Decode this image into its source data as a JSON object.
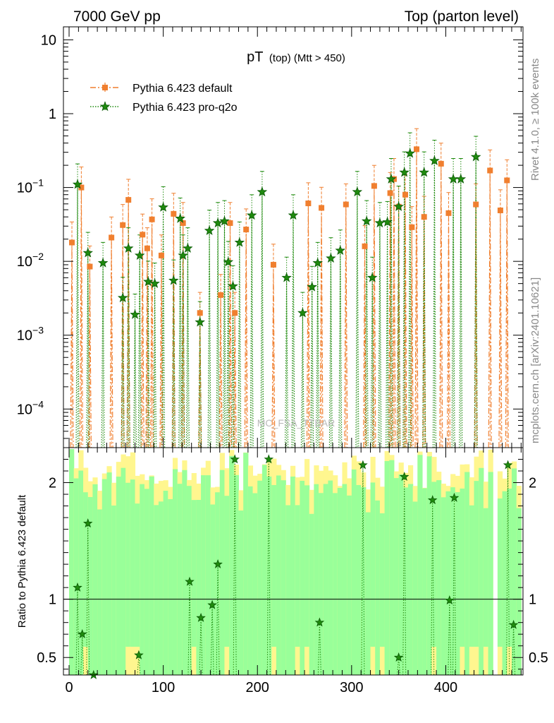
{
  "header": {
    "left": "7000 GeV pp",
    "right": "Top (parton level)"
  },
  "side_labels": {
    "rivet": "Rivet 4.1.0, ≥ 100k events",
    "mcplots": "mcplots.cern.ch [arXiv:2401.10621]"
  },
  "chart_data": {
    "type": "line",
    "title_main": "pT",
    "title_sub": "(top) (Mtt > 450)",
    "watermark": "MC_FSA_TTBAR",
    "legend_position": "top-left",
    "xlim": [
      -6,
      482
    ],
    "x_ticks": [
      0,
      100,
      200,
      300,
      400
    ],
    "x_tick_labels": [
      "0",
      "100",
      "200",
      "300",
      "400"
    ],
    "upper": {
      "yscale": "log",
      "ylim": [
        3e-05,
        15
      ],
      "y_ticks": [
        {
          "value": 10,
          "label": "10",
          "exp": ""
        },
        {
          "value": 1,
          "label": "1",
          "exp": ""
        },
        {
          "value": 0.1,
          "label": "10",
          "exp": "−1"
        },
        {
          "value": 0.01,
          "label": "10",
          "exp": "−2"
        },
        {
          "value": 0.001,
          "label": "10",
          "exp": "−3"
        },
        {
          "value": 0.0001,
          "label": "10",
          "exp": "−4"
        }
      ]
    },
    "lower": {
      "ylabel": "Ratio to Pythia 6.423 default",
      "ylim": [
        0.35,
        2.3
      ],
      "y_ticks": [
        0.5,
        1,
        2
      ],
      "y_tick_labels": [
        "0.5",
        "1",
        "2"
      ],
      "reference": 1
    },
    "series": [
      {
        "name": "Pythia 6.423 default",
        "color": "#f07f2f",
        "marker": "square",
        "x": [
          3,
          13,
          22,
          45,
          57,
          63,
          78,
          83,
          88,
          98,
          111,
          121,
          139,
          161,
          171,
          176,
          188,
          217,
          254,
          268,
          294,
          314,
          324,
          341,
          345,
          350,
          357,
          364,
          369,
          377,
          395,
          403,
          432,
          447,
          458,
          465
        ],
        "y": [
          0.018,
          0.1,
          0.0085,
          0.021,
          0.031,
          0.068,
          0.023,
          0.015,
          0.037,
          0.012,
          0.044,
          0.033,
          0.002,
          0.0035,
          0.033,
          0.002,
          0.027,
          0.009,
          0.061,
          0.053,
          0.059,
          0.016,
          0.105,
          0.084,
          0.13,
          0.055,
          0.08,
          0.029,
          0.33,
          0.04,
          0.21,
          0.045,
          0.059,
          0.17,
          0.049,
          0.125
        ]
      },
      {
        "name": "Pythia 6.423 pro-q2o",
        "color": "#1f8a0e",
        "marker": "star",
        "x": [
          9,
          20,
          36,
          57,
          63,
          70,
          75,
          84,
          91,
          100,
          111,
          118,
          121,
          126,
          139,
          149,
          158,
          165,
          169,
          174,
          181,
          194,
          205,
          231,
          238,
          248,
          258,
          264,
          278,
          288,
          306,
          316,
          322,
          330,
          338,
          342,
          350,
          356,
          362,
          377,
          388,
          408,
          416,
          432
        ],
        "y": [
          0.11,
          0.013,
          0.0095,
          0.0032,
          0.015,
          0.0019,
          0.012,
          0.0053,
          0.005,
          0.054,
          0.0055,
          0.038,
          0.012,
          0.015,
          0.0015,
          0.026,
          0.033,
          0.035,
          0.0098,
          0.0046,
          0.018,
          0.042,
          0.087,
          0.006,
          0.042,
          0.002,
          0.0045,
          0.0095,
          0.011,
          0.014,
          0.087,
          0.035,
          0.006,
          0.033,
          0.034,
          0.13,
          0.055,
          0.16,
          0.29,
          0.16,
          0.23,
          0.13,
          0.13,
          0.26
        ]
      }
    ],
    "ratio_points": {
      "x": [
        9,
        14,
        20,
        26,
        74,
        128,
        140,
        152,
        158,
        176,
        212,
        266,
        312,
        350,
        356,
        386,
        404,
        409,
        466,
        472
      ],
      "y": [
        1.1,
        0.7,
        1.65,
        0.35,
        0.52,
        1.15,
        0.84,
        0.95,
        1.3,
        2.2,
        2.2,
        0.8,
        2.15,
        0.5,
        2.05,
        1.85,
        0.99,
        1.87,
        2.15,
        0.78
      ]
    }
  }
}
